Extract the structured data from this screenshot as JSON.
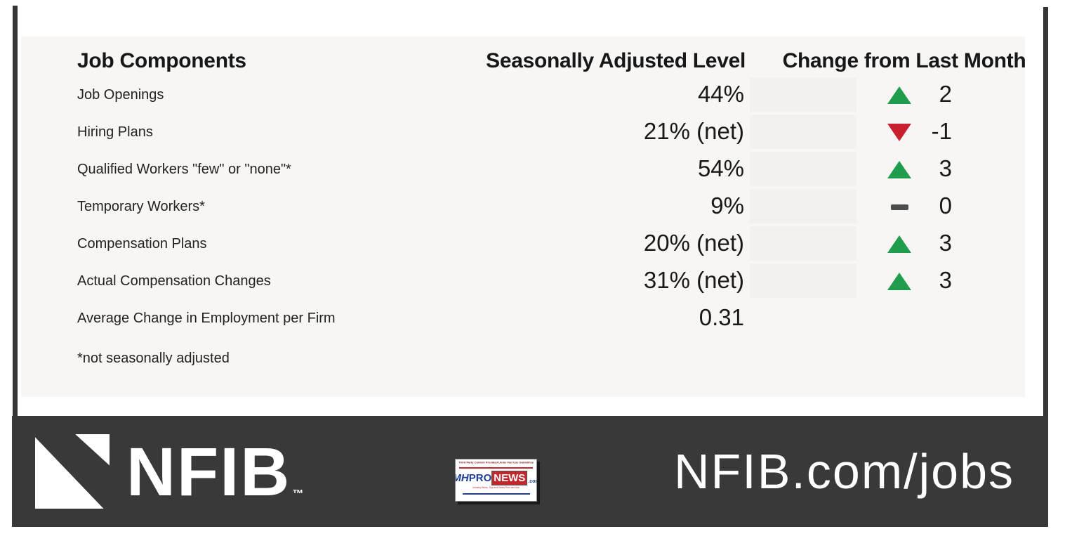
{
  "chart_data": {
    "type": "table",
    "columns": [
      "Job Components",
      "Seasonally Adjusted Level",
      "Change from Last Month"
    ],
    "rows": [
      [
        "Job Openings",
        "44%",
        2
      ],
      [
        "Hiring Plans",
        "21% (net)",
        -1
      ],
      [
        "Qualified Workers \"few\" or \"none\"*",
        "54%",
        3
      ],
      [
        "Temporary Workers*",
        "9%",
        0
      ],
      [
        "Compensation Plans",
        "20% (net)",
        3
      ],
      [
        "Actual Compensation Changes",
        "31% (net)",
        3
      ],
      [
        "Average Change in Employment per Firm",
        "0.31",
        null
      ]
    ],
    "footnote": "*not seasonally adjusted"
  },
  "table": {
    "headers": {
      "component": "Job Components",
      "level": "Seasonally Adjusted Level",
      "change": "Change from Last Month"
    },
    "rows": [
      {
        "label": "Job Openings",
        "value": "44%",
        "direction": "up",
        "delta": "2"
      },
      {
        "label": "Hiring Plans",
        "value": "21% (net)",
        "direction": "down",
        "delta": "-1"
      },
      {
        "label": "Qualified Workers \"few\" or \"none\"*",
        "value": "54%",
        "direction": "up",
        "delta": "3"
      },
      {
        "label": "Temporary Workers*",
        "value": "9%",
        "direction": "flat",
        "delta": "0"
      },
      {
        "label": "Compensation Plans",
        "value": "20% (net)",
        "direction": "up",
        "delta": "3"
      },
      {
        "label": "Actual Compensation Changes",
        "value": "31% (net)",
        "direction": "up",
        "delta": "3"
      },
      {
        "label": "Average Change in Employment per Firm",
        "value": "0.31",
        "direction": "none",
        "delta": ""
      }
    ],
    "footnote": "*not seasonally adjusted"
  },
  "footer": {
    "brand": "NFIB",
    "trademark": "™",
    "url": "NFIB.com/jobs",
    "watermark": {
      "disclaimer": "Third Party Content Provided Under Fair Use Guidelines",
      "brand_mh": "MH",
      "brand_pro": "PRO",
      "brand_news": "NEWS",
      "brand_tld": ".com",
      "tagline": "Industry News, Tips and Views Pros can Use"
    }
  },
  "colors": {
    "green": "#1f9d4d",
    "red": "#c92030",
    "dash": "#4d4d4d",
    "bar": "#353535",
    "panel_bg": "#f8f6f4",
    "cell_bg": "#f3f1ef",
    "footer_bg": "#393939",
    "mh_blue": "#1c3e94",
    "mh_red": "#c1272d"
  }
}
